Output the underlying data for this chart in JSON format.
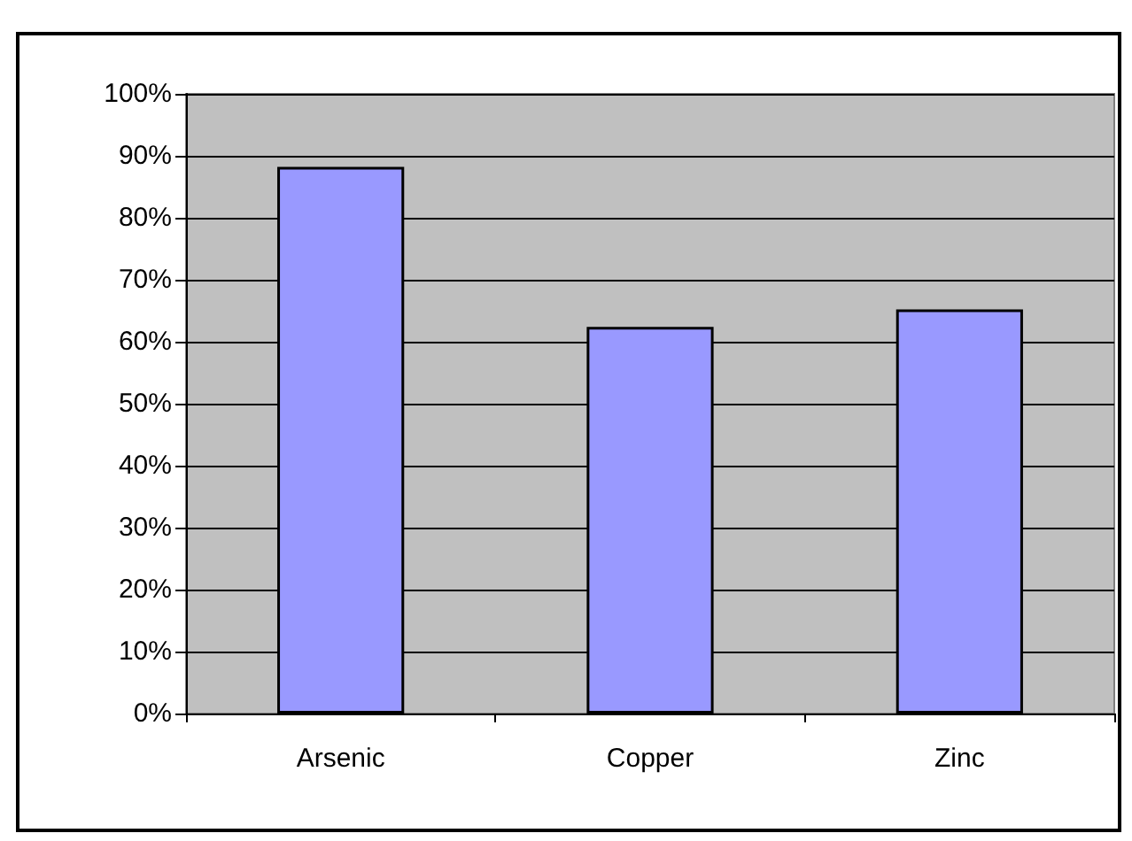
{
  "chart_data": {
    "type": "bar",
    "categories": [
      "Arsenic",
      "Copper",
      "Zinc"
    ],
    "values": [
      88.2,
      62.4,
      65.2
    ],
    "color": "#9999ff",
    "ylim": [
      0,
      100
    ],
    "yticks": [
      {
        "value": 0,
        "label": "0%"
      },
      {
        "value": 10,
        "label": "10%"
      },
      {
        "value": 20,
        "label": "20%"
      },
      {
        "value": 30,
        "label": "30%"
      },
      {
        "value": 40,
        "label": "40%"
      },
      {
        "value": 50,
        "label": "50%"
      },
      {
        "value": 60,
        "label": "60%"
      },
      {
        "value": 70,
        "label": "70%"
      },
      {
        "value": 80,
        "label": "80%"
      },
      {
        "value": 90,
        "label": "90%"
      },
      {
        "value": 100,
        "label": "100%"
      }
    ],
    "grid": "y"
  }
}
